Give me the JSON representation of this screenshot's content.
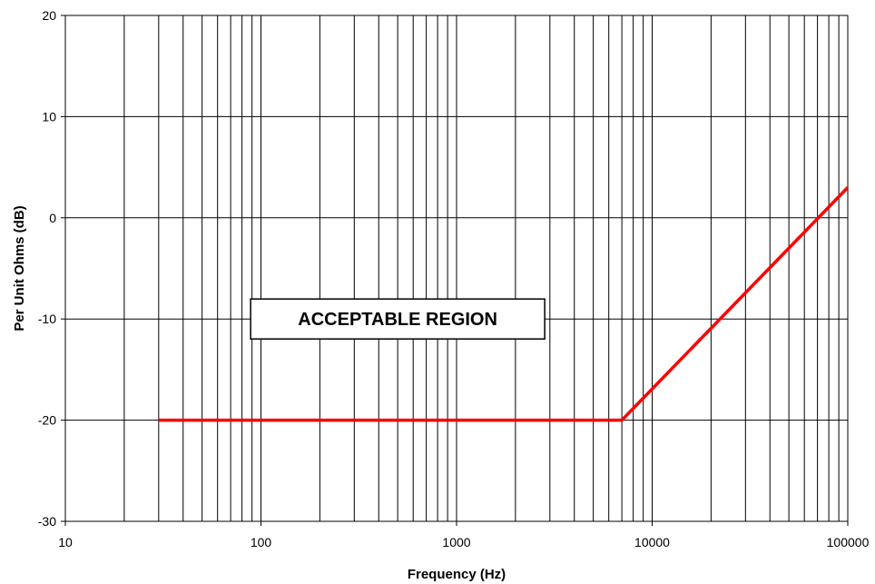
{
  "chart_data": {
    "type": "line",
    "title": "",
    "xlabel": "Frequency (Hz)",
    "ylabel": "Per Unit Ohms (dB)",
    "xscale": "log",
    "xlim": [
      10,
      100000
    ],
    "ylim": [
      -30,
      20
    ],
    "grid": true,
    "xticks": [
      "10",
      "100",
      "1000",
      "10000",
      "100000"
    ],
    "yticks": [
      "20",
      "10",
      "0",
      "-10",
      "-20",
      "-30"
    ],
    "series": [
      {
        "color": "#ff0000",
        "x": [
          30,
          50,
          7000,
          100000
        ],
        "y": [
          -20,
          -20,
          -20,
          3
        ]
      }
    ],
    "annotations": [
      {
        "text": "ACCEPTABLE REGION",
        "x": 500,
        "y": -10
      }
    ]
  }
}
